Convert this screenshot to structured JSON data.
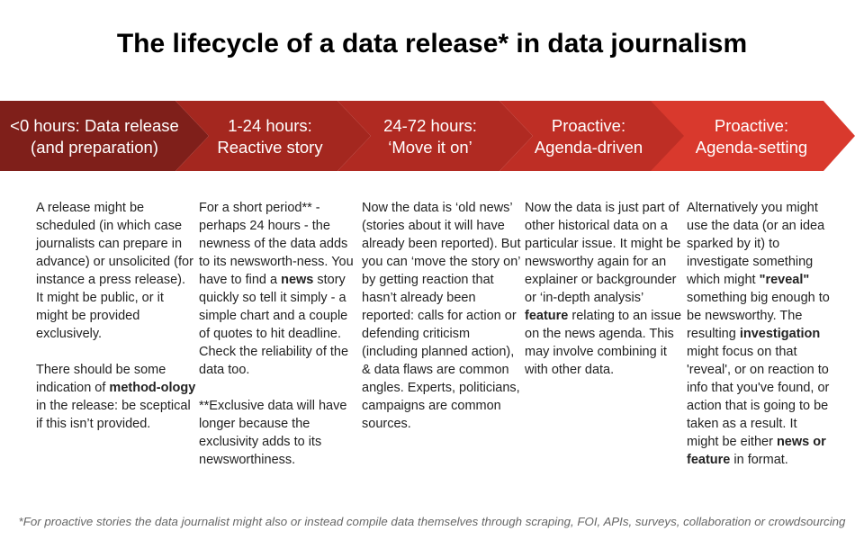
{
  "title": "The lifecycle of a data release* in data journalism",
  "colors": [
    "#7f1f1a",
    "#a4271f",
    "#b02a22",
    "#be2e25",
    "#d9392d"
  ],
  "stages": [
    {
      "line1": "<0 hours: Data release",
      "line2": "(and preparation)"
    },
    {
      "line1": "1-24 hours:",
      "line2": "Reactive story"
    },
    {
      "line1": "24-72 hours:",
      "line2": "‘Move it on’"
    },
    {
      "line1": "Proactive:",
      "line2": "Agenda-driven"
    },
    {
      "line1": "Proactive:",
      "line2": "Agenda-setting"
    }
  ],
  "columns": [
    {
      "paragraphs": [
        [
          {
            "t": "A release might be scheduled (in which case journalists can prepare in advance) or unsolicited (for instance a press release). It might be public, or it might be provided exclusively."
          }
        ],
        [
          {
            "t": "There should be some indication of "
          },
          {
            "t": "method-ology",
            "b": true
          },
          {
            "t": " in the release: be sceptical if this isn’t provided."
          }
        ]
      ]
    },
    {
      "paragraphs": [
        [
          {
            "t": "For a short period** - perhaps 24 hours - the newness of the data adds to its newsworth-ness. You have to find a "
          },
          {
            "t": "news",
            "b": true
          },
          {
            "t": " story quickly so tell it simply - a simple chart and a couple of quotes to hit deadline. Check the reliability of the data too."
          }
        ],
        [
          {
            "t": "**Exclusive data will have longer because the exclusivity adds to its newsworthiness."
          }
        ]
      ]
    },
    {
      "paragraphs": [
        [
          {
            "t": "Now the data is ‘old news’ (stories about it will have already been reported). But you can ‘move the story on’ by getting reaction that hasn’t already been reported: calls for action or defending criticism (including planned action), & data flaws are common angles. Experts, politicians, campaigns are common sources."
          }
        ]
      ]
    },
    {
      "paragraphs": [
        [
          {
            "t": "Now the data is just part of other historical data on a particular issue. It might be newsworthy again for an explainer or backgrounder or ‘in-depth analysis’ "
          },
          {
            "t": "feature",
            "b": true
          },
          {
            "t": " relating to an issue on the news agenda. This may involve combining it with other data."
          }
        ]
      ]
    },
    {
      "paragraphs": [
        [
          {
            "t": "Alternatively you might use the data (or an idea sparked by it) to investigate something which might "
          },
          {
            "t": "\"reveal\"",
            "b": true
          },
          {
            "t": " something big enough to be newsworthy. The resulting "
          },
          {
            "t": "investigation",
            "b": true
          },
          {
            "t": " might focus on that 'reveal', or on reaction to info that you've found, or action that is going to be taken as a result. It might be either "
          },
          {
            "t": "news or feature",
            "b": true
          },
          {
            "t": " in format."
          }
        ]
      ]
    }
  ],
  "footnote": "*For proactive stories the data journalist might also or instead compile data themselves through scraping, FOI, APIs, surveys, collaboration or crowdsourcing"
}
